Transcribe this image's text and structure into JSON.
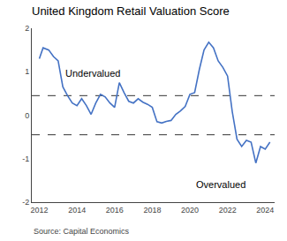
{
  "chart_data": {
    "type": "line",
    "title": "United Kingdom Retail Valuation Score",
    "source": "Source: Capital Economics",
    "annotations": [
      "Undervalued",
      "Overvalued"
    ],
    "x": [
      2012.0,
      2012.2,
      2012.5,
      2012.75,
      2013.0,
      2013.25,
      2013.5,
      2013.75,
      2014.0,
      2014.25,
      2014.5,
      2014.75,
      2015.0,
      2015.25,
      2015.5,
      2015.75,
      2016.0,
      2016.25,
      2016.5,
      2016.75,
      2017.0,
      2017.25,
      2017.5,
      2017.75,
      2018.0,
      2018.25,
      2018.5,
      2018.75,
      2019.0,
      2019.25,
      2019.5,
      2019.75,
      2020.0,
      2020.25,
      2020.5,
      2020.75,
      2021.0,
      2021.25,
      2021.5,
      2021.75,
      2022.0,
      2022.25,
      2022.5,
      2022.75,
      2023.0,
      2023.25,
      2023.5,
      2023.75,
      2024.0,
      2024.25
    ],
    "values": [
      1.3,
      1.55,
      1.5,
      1.35,
      1.25,
      0.65,
      0.45,
      0.28,
      0.22,
      0.38,
      0.22,
      0.02,
      0.28,
      0.48,
      0.42,
      0.28,
      0.18,
      0.75,
      0.52,
      0.32,
      0.28,
      0.38,
      0.3,
      0.25,
      0.18,
      -0.15,
      -0.18,
      -0.14,
      -0.12,
      0.02,
      0.1,
      0.2,
      0.48,
      0.52,
      1.05,
      1.5,
      1.68,
      1.55,
      1.25,
      1.1,
      0.9,
      0.08,
      -0.55,
      -0.72,
      -0.58,
      -0.62,
      -1.1,
      -0.72,
      -0.78,
      -0.62
    ],
    "color": "#4472c4",
    "reference_lines": [
      {
        "value": 0.45,
        "color": "#333333",
        "line_style": "dashed"
      },
      {
        "value": -0.45,
        "color": "#333333",
        "line_style": "dashed"
      }
    ],
    "xlim": [
      2011.6,
      2024.5
    ],
    "xticks": [
      2012,
      2014,
      2016,
      2018,
      2020,
      2022,
      2024
    ],
    "ylim": [
      -2,
      2
    ],
    "yticks": [
      -2,
      -1,
      0,
      1,
      2
    ],
    "grid": false
  }
}
